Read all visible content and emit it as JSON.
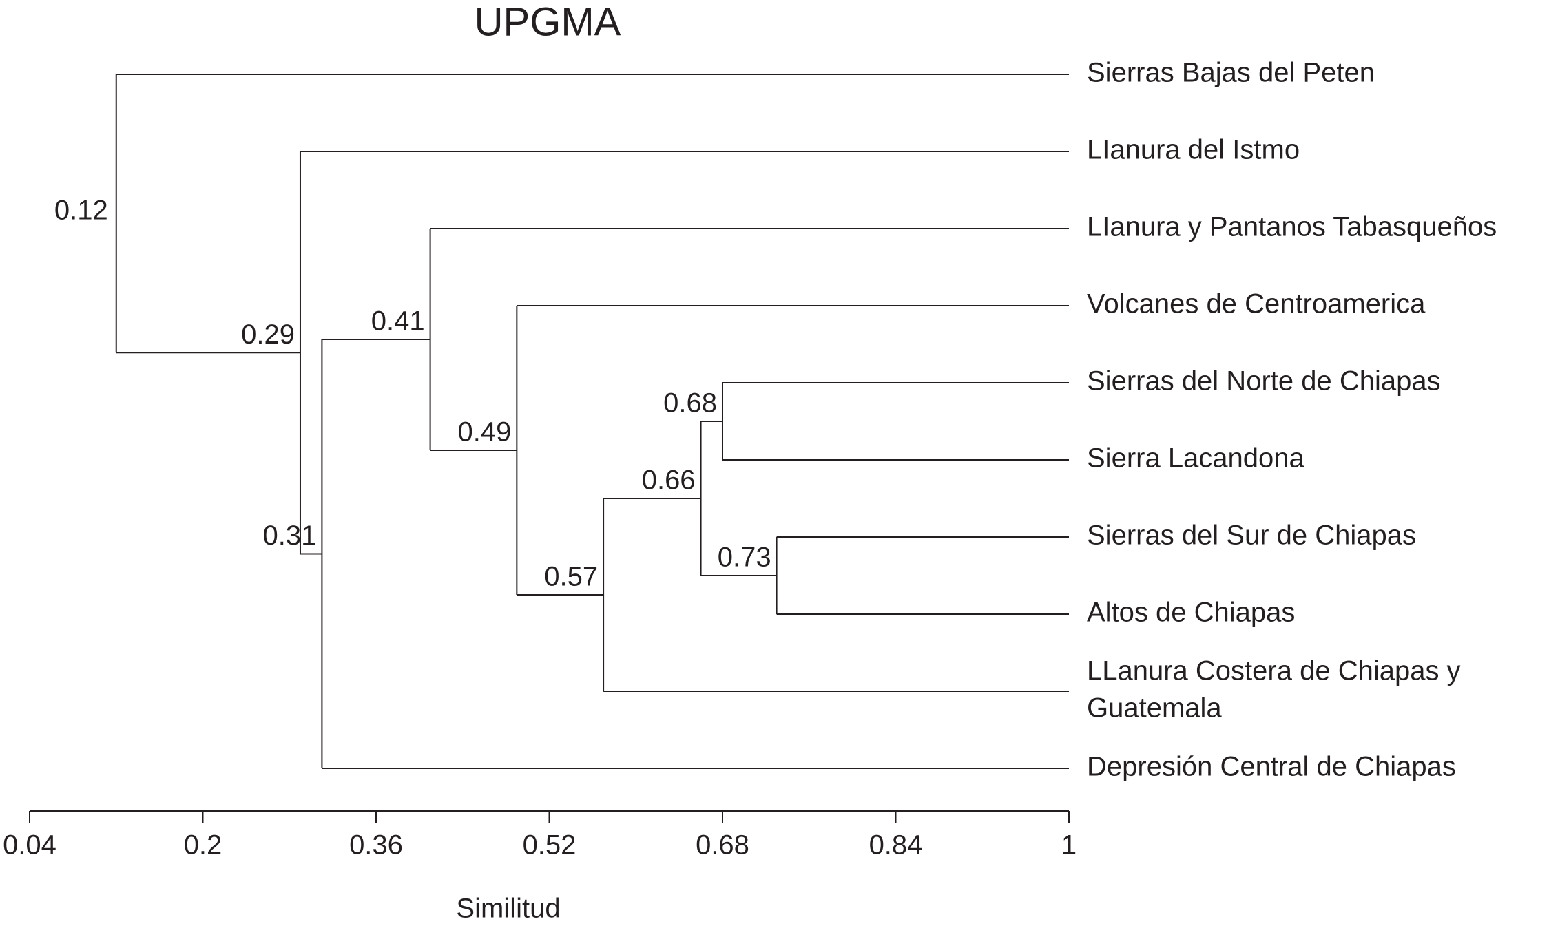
{
  "chart_data": {
    "type": "dendrogram",
    "title": "UPGMA",
    "xlabel": "Similitud",
    "xlim": [
      0.04,
      1
    ],
    "xticks": [
      0.04,
      0.2,
      0.36,
      0.52,
      0.68,
      0.84,
      1
    ],
    "leaves": [
      [
        "Sierras Bajas del Peten"
      ],
      [
        "LIanura del Istmo"
      ],
      [
        "LIanura y Pantanos Tabasqueños"
      ],
      [
        "Volcanes de Centroamerica"
      ],
      [
        "Sierras del Norte de Chiapas"
      ],
      [
        "Sierra Lacandona"
      ],
      [
        "Sierras del Sur de Chiapas"
      ],
      [
        "Altos de Chiapas"
      ],
      [
        "LLanura Costera de Chiapas y",
        "Guatemala"
      ],
      [
        "Depresión Central de Chiapas"
      ]
    ],
    "nodes": [
      {
        "height": 0.73,
        "children": [
          {
            "leaf": 6
          },
          {
            "leaf": 7
          }
        ]
      },
      {
        "height": 0.68,
        "children": [
          {
            "leaf": 4
          },
          {
            "leaf": 5
          }
        ]
      },
      {
        "height": 0.66,
        "children": [
          {
            "node": 1
          },
          {
            "node": 0
          }
        ]
      },
      {
        "height": 0.57,
        "children": [
          {
            "node": 2
          },
          {
            "leaf": 8
          }
        ]
      },
      {
        "height": 0.49,
        "children": [
          {
            "leaf": 3
          },
          {
            "node": 3
          }
        ]
      },
      {
        "height": 0.41,
        "children": [
          {
            "leaf": 2
          },
          {
            "node": 4
          }
        ]
      },
      {
        "height": 0.31,
        "children": [
          {
            "node": 5
          },
          {
            "leaf": 9
          }
        ]
      },
      {
        "height": 0.29,
        "children": [
          {
            "leaf": 1
          },
          {
            "node": 6
          }
        ]
      },
      {
        "height": 0.12,
        "children": [
          {
            "leaf": 0
          },
          {
            "node": 7
          }
        ]
      }
    ]
  }
}
